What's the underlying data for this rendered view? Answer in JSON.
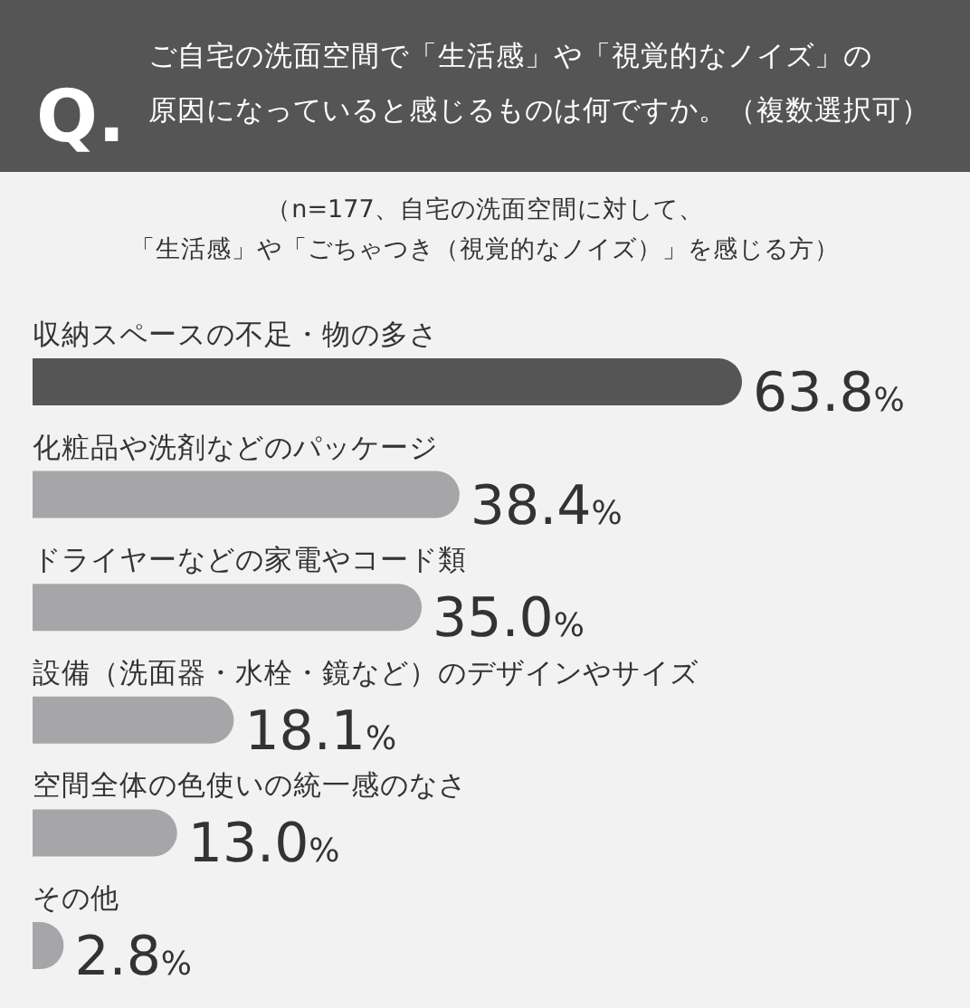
{
  "chart_data": {
    "type": "bar",
    "orientation": "horizontal",
    "title": "ご自宅の洗面空間で「生活感」や「視覚的なノイズ」の原因になっていると感じるものは何ですか。（複数選択可）",
    "subtitle": "（n=177、自宅の洗面空間に対して、",
    "annotations": [
      "Q.",
      "「生活感」や「ごちゃつき（視覚的なノイズ）」を感じる方）"
    ],
    "categories": [
      "収納スペースの不足・物の多さ",
      "化粧品や洗剤などのパッケージ",
      "ドライヤーなどの家電やコード類",
      "設備（洗面器・水栓・鏡など）のデザインやサイズ",
      "空間全体の色使いの統一感のなさ",
      "その他"
    ],
    "values": [
      63.8,
      38.4,
      35.0,
      18.1,
      13.0,
      2.8
    ],
    "colors": [
      "#555555",
      "#a6a6a9",
      "#a6a6a9",
      "#a6a6a9",
      "#a6a6a9",
      "#a6a6a9"
    ],
    "value_labels": [
      "63.8%",
      "38.4%",
      "35.0%",
      "18.1%",
      "13.0%",
      "2.8%"
    ],
    "stacked": false
  }
}
